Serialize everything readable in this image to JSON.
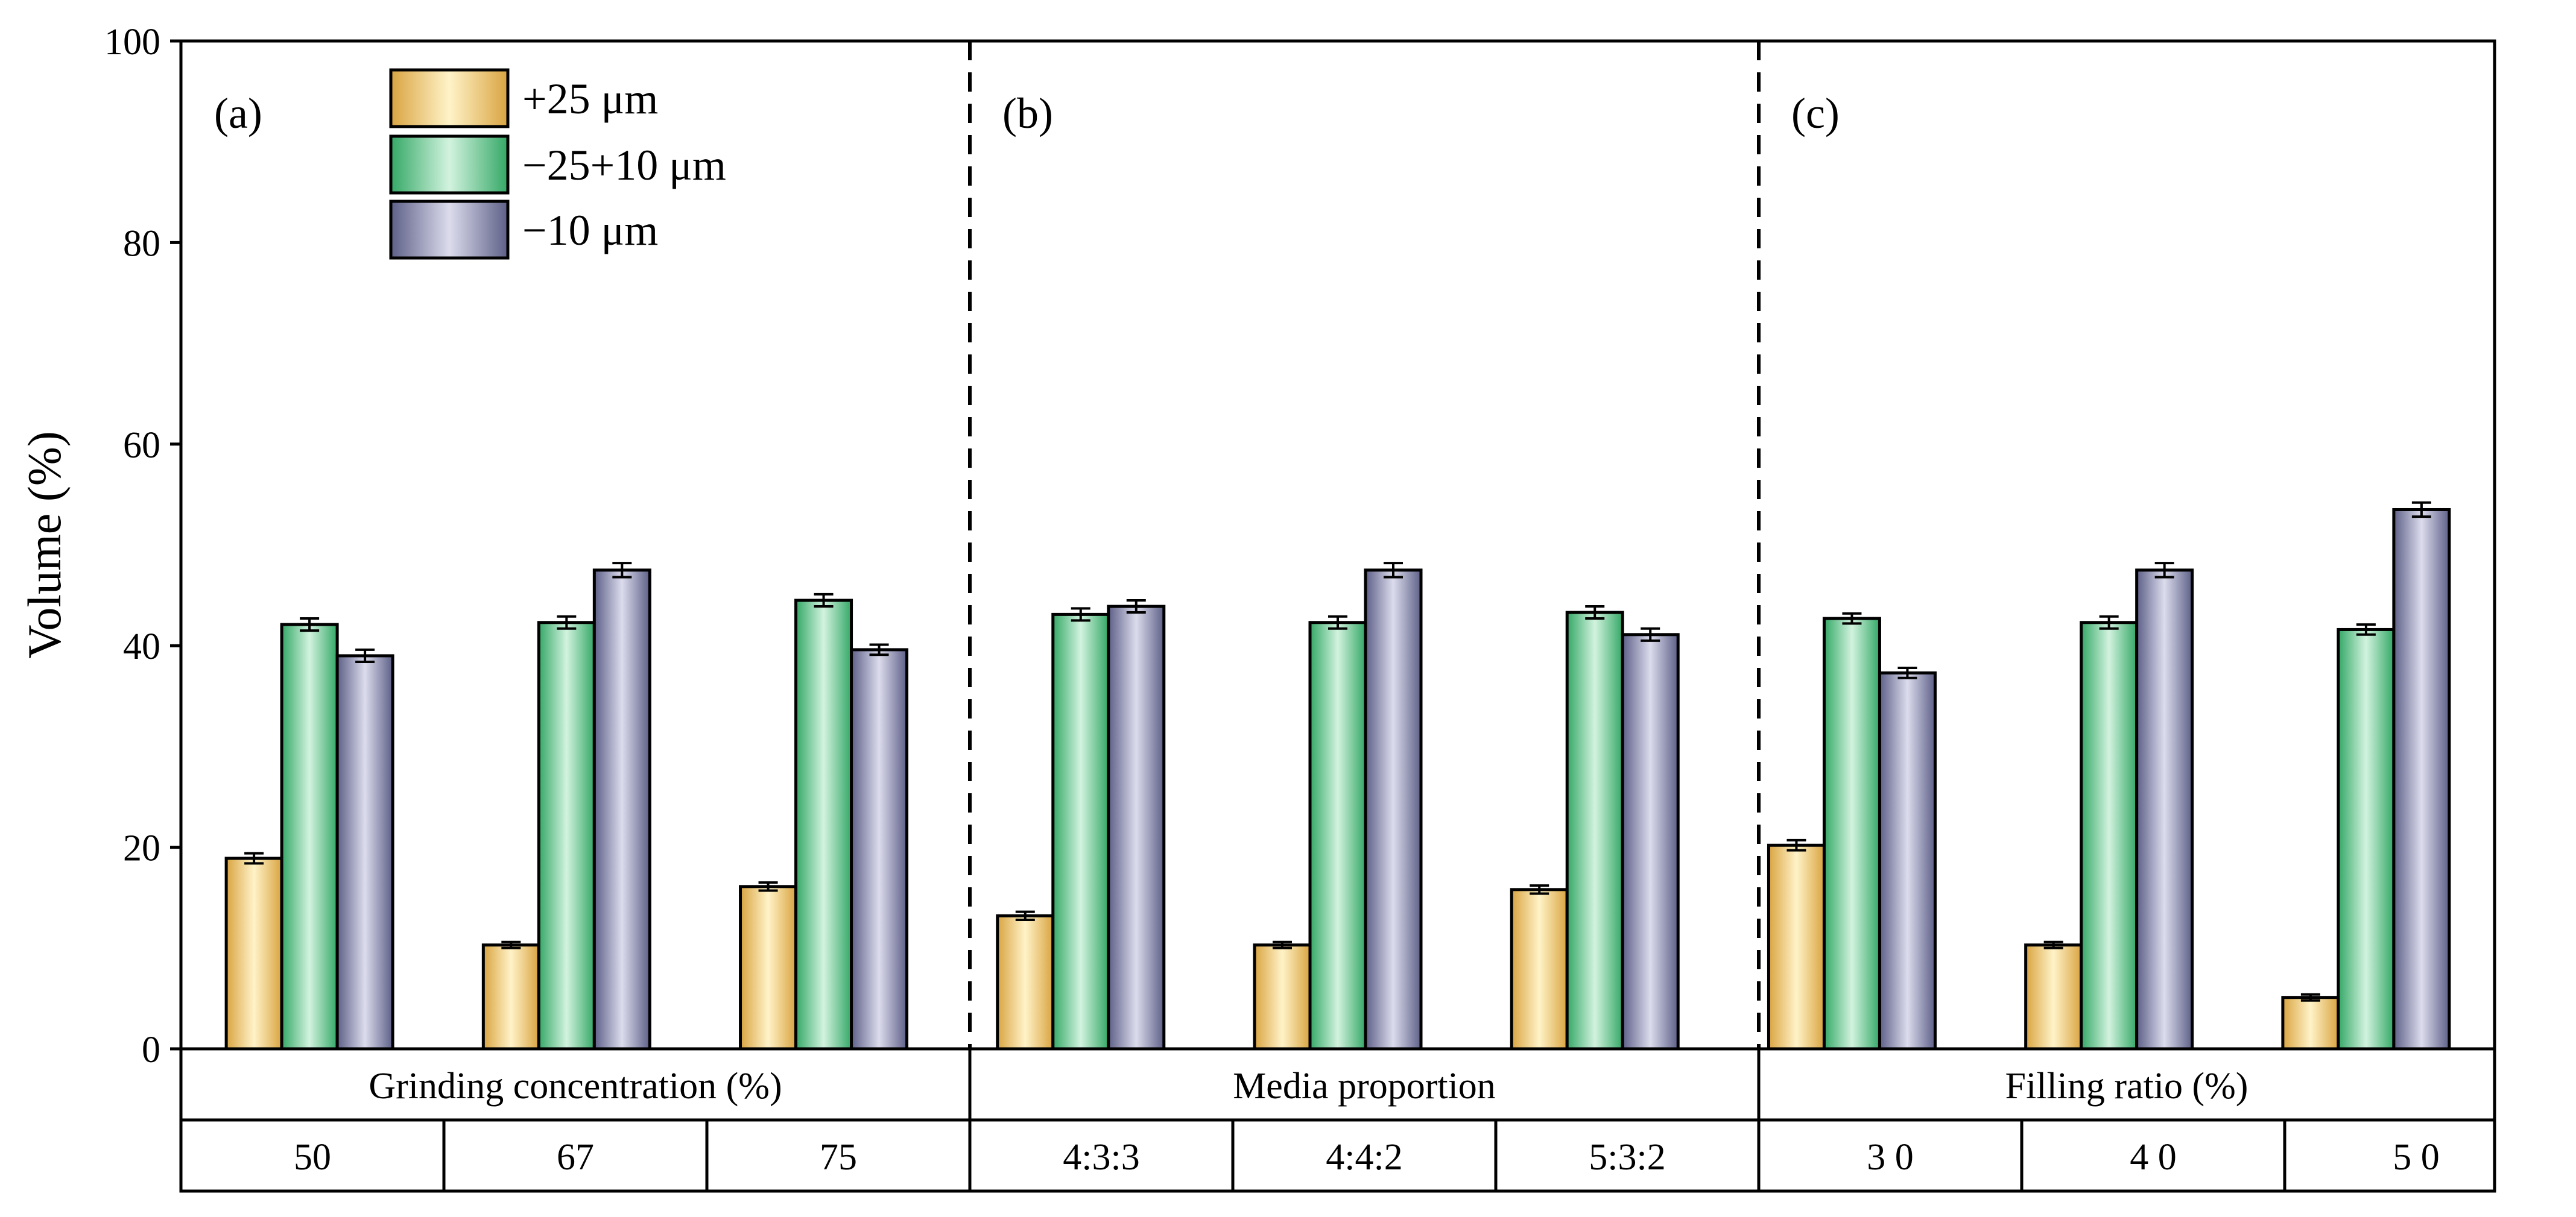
{
  "chart_data": {
    "type": "bar",
    "ylabel": "Volume (%)",
    "ylim": [
      0,
      100
    ],
    "yticks": [
      "0",
      "20",
      "40",
      "60",
      "80",
      "100"
    ],
    "grid": false,
    "legend_position": "top-left",
    "series": [
      {
        "name": "+25 μm",
        "color_dark": "#d9a441",
        "color_light": "#fff3c8"
      },
      {
        "name": "−25+10 μm",
        "color_dark": "#34a866",
        "color_light": "#d2f3df"
      },
      {
        "name": "−10 μm",
        "color_dark": "#5d5f87",
        "color_light": "#dcdced"
      }
    ],
    "panels": [
      {
        "label": "(a)",
        "group_title": "Grinding concentration (%)",
        "categories": [
          {
            "name": "50",
            "values": [
              18.9,
              42.1,
              39.0
            ],
            "errors": [
              0.5,
              0.6,
              0.6
            ]
          },
          {
            "name": "67",
            "values": [
              10.3,
              42.3,
              47.5
            ],
            "errors": [
              0.3,
              0.6,
              0.7
            ]
          },
          {
            "name": "75",
            "values": [
              16.1,
              44.5,
              39.6
            ],
            "errors": [
              0.4,
              0.6,
              0.5
            ]
          }
        ]
      },
      {
        "label": "(b)",
        "group_title": "Media proportion",
        "categories": [
          {
            "name": "4:3:3",
            "values": [
              13.2,
              43.1,
              43.9
            ],
            "errors": [
              0.4,
              0.6,
              0.6
            ]
          },
          {
            "name": "4:4:2",
            "values": [
              10.3,
              42.3,
              47.5
            ],
            "errors": [
              0.3,
              0.6,
              0.7
            ]
          },
          {
            "name": "5:3:2",
            "values": [
              15.8,
              43.3,
              41.1
            ],
            "errors": [
              0.4,
              0.6,
              0.6
            ]
          }
        ]
      },
      {
        "label": "(c)",
        "group_title": "Filling ratio (%)",
        "categories": [
          {
            "name": "3 0",
            "values": [
              20.2,
              42.7,
              37.3
            ],
            "errors": [
              0.5,
              0.5,
              0.5
            ]
          },
          {
            "name": "4 0",
            "values": [
              10.3,
              42.3,
              47.5
            ],
            "errors": [
              0.3,
              0.6,
              0.7
            ]
          },
          {
            "name": "5 0",
            "values": [
              5.1,
              41.6,
              53.5
            ],
            "errors": [
              0.3,
              0.5,
              0.7
            ]
          }
        ]
      }
    ]
  }
}
